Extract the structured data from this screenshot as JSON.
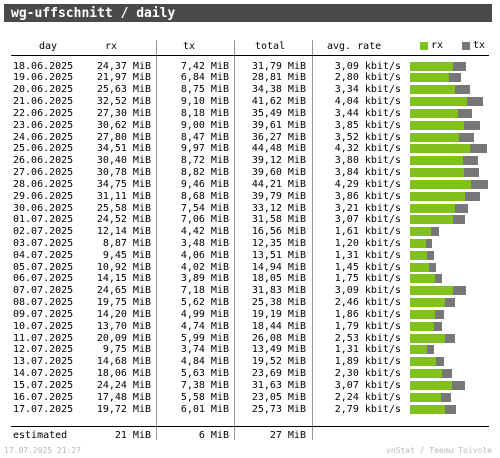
{
  "title": "wg-uffschnitt / daily",
  "columns": {
    "day": "day",
    "rx": "rx",
    "tx": "tx",
    "total": "total",
    "rate": "avg. rate"
  },
  "legend": {
    "rx": "rx",
    "tx": "tx"
  },
  "colors": {
    "rx": "#80c21b",
    "tx": "#777777",
    "header": "#4a4a4a"
  },
  "rows": [
    {
      "day": "18.06.2025",
      "rx": "24,37 MiB",
      "tx": "7,42 MiB",
      "total": "31,79 MiB",
      "rate": "3,09 kbit/s",
      "rx_mib": 24.37,
      "tx_mib": 7.42
    },
    {
      "day": "19.06.2025",
      "rx": "21,97 MiB",
      "tx": "6,84 MiB",
      "total": "28,81 MiB",
      "rate": "2,80 kbit/s",
      "rx_mib": 21.97,
      "tx_mib": 6.84
    },
    {
      "day": "20.06.2025",
      "rx": "25,63 MiB",
      "tx": "8,75 MiB",
      "total": "34,38 MiB",
      "rate": "3,34 kbit/s",
      "rx_mib": 25.63,
      "tx_mib": 8.75
    },
    {
      "day": "21.06.2025",
      "rx": "32,52 MiB",
      "tx": "9,10 MiB",
      "total": "41,62 MiB",
      "rate": "4,04 kbit/s",
      "rx_mib": 32.52,
      "tx_mib": 9.1
    },
    {
      "day": "22.06.2025",
      "rx": "27,30 MiB",
      "tx": "8,18 MiB",
      "total": "35,49 MiB",
      "rate": "3,44 kbit/s",
      "rx_mib": 27.3,
      "tx_mib": 8.18
    },
    {
      "day": "23.06.2025",
      "rx": "30,62 MiB",
      "tx": "9,00 MiB",
      "total": "39,61 MiB",
      "rate": "3,85 kbit/s",
      "rx_mib": 30.62,
      "tx_mib": 9.0
    },
    {
      "day": "24.06.2025",
      "rx": "27,80 MiB",
      "tx": "8,47 MiB",
      "total": "36,27 MiB",
      "rate": "3,52 kbit/s",
      "rx_mib": 27.8,
      "tx_mib": 8.47
    },
    {
      "day": "25.06.2025",
      "rx": "34,51 MiB",
      "tx": "9,97 MiB",
      "total": "44,48 MiB",
      "rate": "4,32 kbit/s",
      "rx_mib": 34.51,
      "tx_mib": 9.97
    },
    {
      "day": "26.06.2025",
      "rx": "30,40 MiB",
      "tx": "8,72 MiB",
      "total": "39,12 MiB",
      "rate": "3,80 kbit/s",
      "rx_mib": 30.4,
      "tx_mib": 8.72
    },
    {
      "day": "27.06.2025",
      "rx": "30,78 MiB",
      "tx": "8,82 MiB",
      "total": "39,60 MiB",
      "rate": "3,84 kbit/s",
      "rx_mib": 30.78,
      "tx_mib": 8.82
    },
    {
      "day": "28.06.2025",
      "rx": "34,75 MiB",
      "tx": "9,46 MiB",
      "total": "44,21 MiB",
      "rate": "4,29 kbit/s",
      "rx_mib": 34.75,
      "tx_mib": 9.46
    },
    {
      "day": "29.06.2025",
      "rx": "31,11 MiB",
      "tx": "8,68 MiB",
      "total": "39,79 MiB",
      "rate": "3,86 kbit/s",
      "rx_mib": 31.11,
      "tx_mib": 8.68
    },
    {
      "day": "30.06.2025",
      "rx": "25,58 MiB",
      "tx": "7,54 MiB",
      "total": "33,12 MiB",
      "rate": "3,21 kbit/s",
      "rx_mib": 25.58,
      "tx_mib": 7.54
    },
    {
      "day": "01.07.2025",
      "rx": "24,52 MiB",
      "tx": "7,06 MiB",
      "total": "31,58 MiB",
      "rate": "3,07 kbit/s",
      "rx_mib": 24.52,
      "tx_mib": 7.06
    },
    {
      "day": "02.07.2025",
      "rx": "12,14 MiB",
      "tx": "4,42 MiB",
      "total": "16,56 MiB",
      "rate": "1,61 kbit/s",
      "rx_mib": 12.14,
      "tx_mib": 4.42
    },
    {
      "day": "03.07.2025",
      "rx": "8,87 MiB",
      "tx": "3,48 MiB",
      "total": "12,35 MiB",
      "rate": "1,20 kbit/s",
      "rx_mib": 8.87,
      "tx_mib": 3.48
    },
    {
      "day": "04.07.2025",
      "rx": "9,45 MiB",
      "tx": "4,06 MiB",
      "total": "13,51 MiB",
      "rate": "1,31 kbit/s",
      "rx_mib": 9.45,
      "tx_mib": 4.06
    },
    {
      "day": "05.07.2025",
      "rx": "10,92 MiB",
      "tx": "4,02 MiB",
      "total": "14,94 MiB",
      "rate": "1,45 kbit/s",
      "rx_mib": 10.92,
      "tx_mib": 4.02
    },
    {
      "day": "06.07.2025",
      "rx": "14,15 MiB",
      "tx": "3,89 MiB",
      "total": "18,05 MiB",
      "rate": "1,75 kbit/s",
      "rx_mib": 14.15,
      "tx_mib": 3.89
    },
    {
      "day": "07.07.2025",
      "rx": "24,65 MiB",
      "tx": "7,18 MiB",
      "total": "31,83 MiB",
      "rate": "3,09 kbit/s",
      "rx_mib": 24.65,
      "tx_mib": 7.18
    },
    {
      "day": "08.07.2025",
      "rx": "19,75 MiB",
      "tx": "5,62 MiB",
      "total": "25,38 MiB",
      "rate": "2,46 kbit/s",
      "rx_mib": 19.75,
      "tx_mib": 5.62
    },
    {
      "day": "09.07.2025",
      "rx": "14,20 MiB",
      "tx": "4,99 MiB",
      "total": "19,19 MiB",
      "rate": "1,86 kbit/s",
      "rx_mib": 14.2,
      "tx_mib": 4.99
    },
    {
      "day": "10.07.2025",
      "rx": "13,70 MiB",
      "tx": "4,74 MiB",
      "total": "18,44 MiB",
      "rate": "1,79 kbit/s",
      "rx_mib": 13.7,
      "tx_mib": 4.74
    },
    {
      "day": "11.07.2025",
      "rx": "20,09 MiB",
      "tx": "5,99 MiB",
      "total": "26,08 MiB",
      "rate": "2,53 kbit/s",
      "rx_mib": 20.09,
      "tx_mib": 5.99
    },
    {
      "day": "12.07.2025",
      "rx": "9,75 MiB",
      "tx": "3,74 MiB",
      "total": "13,49 MiB",
      "rate": "1,31 kbit/s",
      "rx_mib": 9.75,
      "tx_mib": 3.74
    },
    {
      "day": "13.07.2025",
      "rx": "14,68 MiB",
      "tx": "4,84 MiB",
      "total": "19,52 MiB",
      "rate": "1,89 kbit/s",
      "rx_mib": 14.68,
      "tx_mib": 4.84
    },
    {
      "day": "14.07.2025",
      "rx": "18,06 MiB",
      "tx": "5,63 MiB",
      "total": "23,69 MiB",
      "rate": "2,30 kbit/s",
      "rx_mib": 18.06,
      "tx_mib": 5.63
    },
    {
      "day": "15.07.2025",
      "rx": "24,24 MiB",
      "tx": "7,38 MiB",
      "total": "31,63 MiB",
      "rate": "3,07 kbit/s",
      "rx_mib": 24.24,
      "tx_mib": 7.38
    },
    {
      "day": "16.07.2025",
      "rx": "17,48 MiB",
      "tx": "5,58 MiB",
      "total": "23,05 MiB",
      "rate": "2,24 kbit/s",
      "rx_mib": 17.48,
      "tx_mib": 5.58
    },
    {
      "day": "17.07.2025",
      "rx": "19,72 MiB",
      "tx": "6,01 MiB",
      "total": "25,73 MiB",
      "rate": "2,79 kbit/s",
      "rx_mib": 19.72,
      "tx_mib": 6.01
    }
  ],
  "estimated": {
    "label": "estimated",
    "rx": "21 MiB",
    "tx": "6 MiB",
    "total": "27 MiB"
  },
  "footer": {
    "timestamp": "17.07.2025 21:27",
    "credit": "vnStat / Teemu Toivola"
  }
}
